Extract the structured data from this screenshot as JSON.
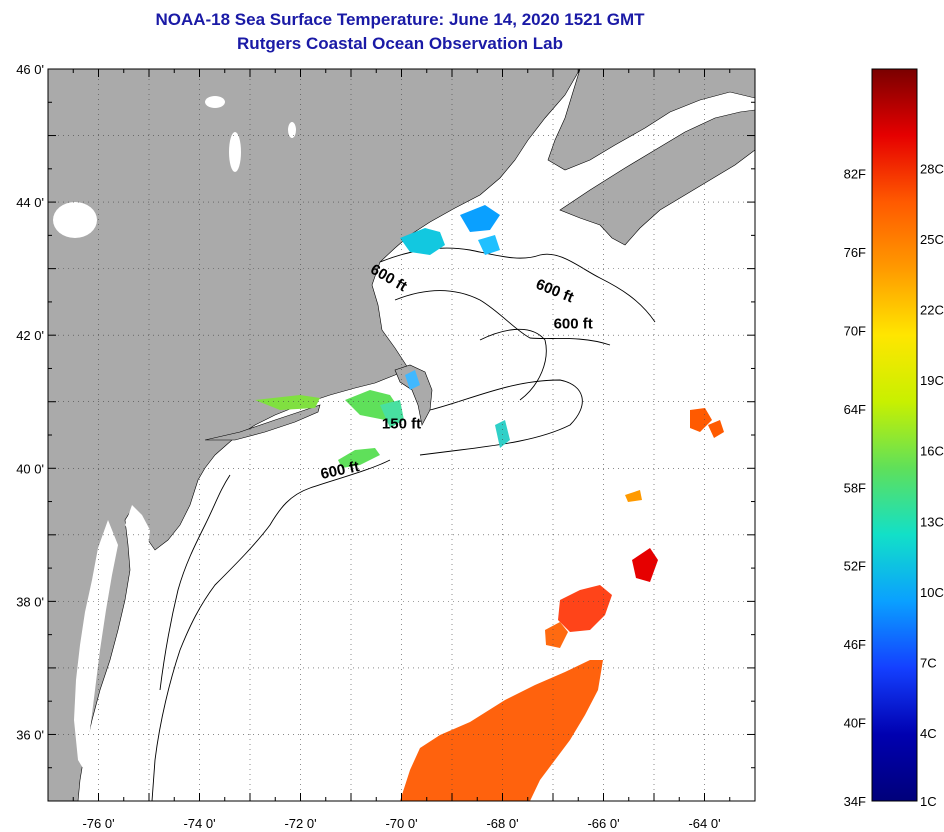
{
  "title": "NOAA-18 Sea Surface Temperature:  June 14, 2020 1521 GMT",
  "subtitle": "Rutgers Coastal Ocean Observation Lab",
  "colors": {
    "land": "#aaaaaa",
    "ocean": "#ffffff",
    "title": "#1a1aa6",
    "coast": "#000000"
  },
  "map": {
    "lon_labels": [
      "-76 0'",
      "-74 0'",
      "-72 0'",
      "-70 0'",
      "-68 0'",
      "-66 0'",
      "-64 0'"
    ],
    "lat_labels": [
      "46 0'",
      "44 0'",
      "42 0'",
      "40 0'",
      "38 0'",
      "36 0'"
    ],
    "lon_range": [
      -77,
      -63
    ],
    "lat_range": [
      35,
      46
    ],
    "contour_labels": [
      {
        "text": "600 ft",
        "lon": -70.3,
        "lat": 42.8,
        "rotate": 30
      },
      {
        "text": "600 ft",
        "lon": -67.0,
        "lat": 42.6,
        "rotate": 22
      },
      {
        "text": "600 ft",
        "lon": -66.6,
        "lat": 42.1,
        "rotate": 0
      },
      {
        "text": "150 ft",
        "lon": -70.0,
        "lat": 40.6,
        "rotate": 0
      },
      {
        "text": "600 ft",
        "lon": -71.2,
        "lat": 39.9,
        "rotate": -12
      }
    ]
  },
  "colorbar": {
    "fahrenheit_labels": [
      "82F",
      "76F",
      "70F",
      "64F",
      "58F",
      "52F",
      "46F",
      "40F",
      "34F"
    ],
    "celsius_labels": [
      "28C",
      "25C",
      "22C",
      "19C",
      "16C",
      "13C",
      "10C",
      "7C",
      "4C",
      "1C"
    ],
    "gradient": [
      "#7a0000",
      "#e60000",
      "#ff5a00",
      "#ff9a00",
      "#ffe600",
      "#c8f000",
      "#5fe05a",
      "#12e0c8",
      "#0aa0ff",
      "#1440ff",
      "#0000b0",
      "#00007a"
    ]
  }
}
